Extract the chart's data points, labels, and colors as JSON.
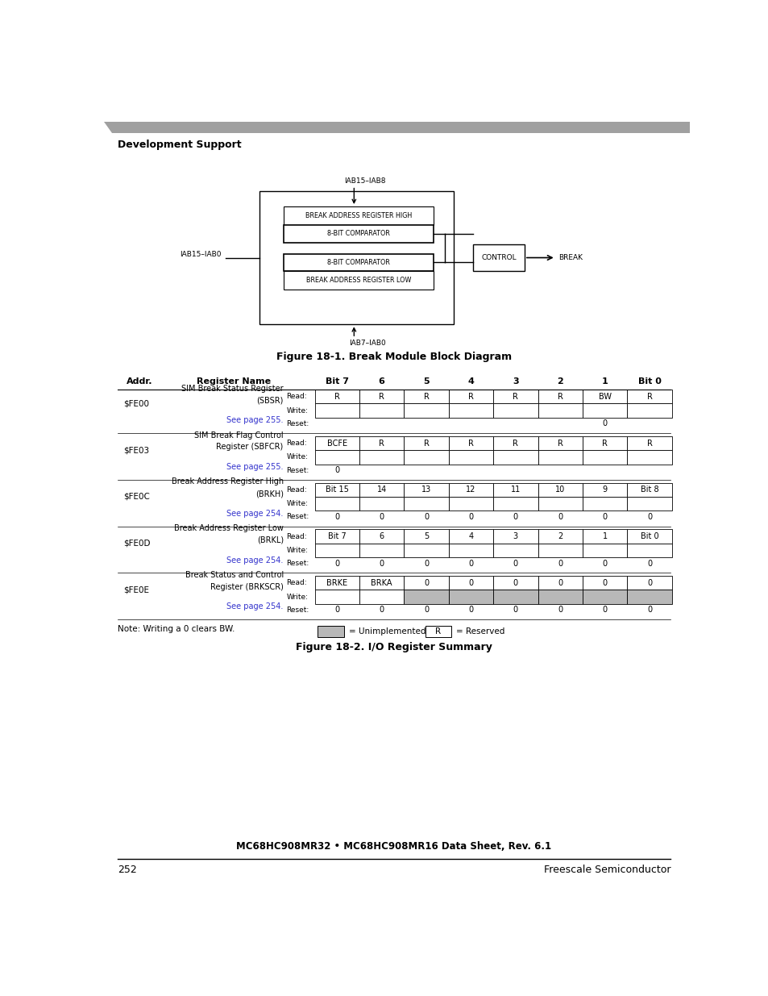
{
  "page_width": 9.54,
  "page_height": 12.35,
  "bg_color": "#ffffff",
  "section_title": "Development Support",
  "fig1_title": "Figure 18-1. Break Module Block Diagram",
  "fig2_title": "Figure 18-2. I/O Register Summary",
  "footer_title": "MC68HC908MR32 • MC68HC908MR16 Data Sheet, Rev. 6.1",
  "page_number": "252",
  "publisher": "Freescale Semiconductor",
  "block_labels": {
    "top_label": "IAB15–IAB8",
    "left_label": "IAB15–IAB0",
    "bottom_label": "IAB7–IAB0",
    "control": "CONTROL",
    "break_label": "BREAK",
    "box1_top": "BREAK ADDRESS REGISTER HIGH",
    "box1_mid": "8-BIT COMPARATOR",
    "box2_mid": "8-BIT COMPARATOR",
    "box2_bot": "BREAK ADDRESS REGISTER LOW"
  },
  "registers": [
    {
      "addr": "$FE00",
      "name_line1": "SIM Break Status Register",
      "name_line2": "(SBSR)",
      "see": "See page 255.",
      "read": [
        "R",
        "R",
        "R",
        "R",
        "R",
        "R",
        "BW",
        "R"
      ],
      "write": [
        "",
        "",
        "",
        "",
        "",
        "",
        "",
        ""
      ],
      "reset": [
        "",
        "",
        "",
        "",
        "",
        "",
        "0",
        ""
      ],
      "write_gray": [
        false,
        false,
        false,
        false,
        false,
        false,
        false,
        false
      ]
    },
    {
      "addr": "$FE03",
      "name_line1": "SIM Break Flag Control",
      "name_line2": "Register (SBFCR)",
      "see": "See page 255.",
      "read": [
        "BCFE",
        "R",
        "R",
        "R",
        "R",
        "R",
        "R",
        "R"
      ],
      "write": [
        "",
        "",
        "",
        "",
        "",
        "",
        "",
        ""
      ],
      "reset": [
        "0",
        "",
        "",
        "",
        "",
        "",
        "",
        ""
      ],
      "write_gray": [
        false,
        false,
        false,
        false,
        false,
        false,
        false,
        false
      ]
    },
    {
      "addr": "$FE0C",
      "name_line1": "Break Address Register High",
      "name_line2": "(BRKH)",
      "see": "See page 254.",
      "read": [
        "Bit 15",
        "14",
        "13",
        "12",
        "11",
        "10",
        "9",
        "Bit 8"
      ],
      "write": [
        "",
        "",
        "",
        "",
        "",
        "",
        "",
        ""
      ],
      "reset": [
        "0",
        "0",
        "0",
        "0",
        "0",
        "0",
        "0",
        "0"
      ],
      "write_gray": [
        false,
        false,
        false,
        false,
        false,
        false,
        false,
        false
      ]
    },
    {
      "addr": "$FE0D",
      "name_line1": "Break Address Register Low",
      "name_line2": "(BRKL)",
      "see": "See page 254.",
      "read": [
        "Bit 7",
        "6",
        "5",
        "4",
        "3",
        "2",
        "1",
        "Bit 0"
      ],
      "write": [
        "",
        "",
        "",
        "",
        "",
        "",
        "",
        ""
      ],
      "reset": [
        "0",
        "0",
        "0",
        "0",
        "0",
        "0",
        "0",
        "0"
      ],
      "write_gray": [
        false,
        false,
        false,
        false,
        false,
        false,
        false,
        false
      ]
    },
    {
      "addr": "$FE0E",
      "name_line1": "Break Status and Control",
      "name_line2": "Register (BRKSCR)",
      "see": "See page 254.",
      "read": [
        "BRKE",
        "BRKA",
        "0",
        "0",
        "0",
        "0",
        "0",
        "0"
      ],
      "write": [
        "",
        "",
        "",
        "",
        "",
        "",
        "",
        ""
      ],
      "reset": [
        "0",
        "0",
        "0",
        "0",
        "0",
        "0",
        "0",
        "0"
      ],
      "write_gray": [
        false,
        false,
        true,
        true,
        true,
        true,
        true,
        true
      ]
    }
  ],
  "note": "Note: Writing a 0 clears BW.",
  "legend_gray": "= Unimplemented",
  "legend_r": "= Reserved",
  "gray_color": "#b8b8b8"
}
